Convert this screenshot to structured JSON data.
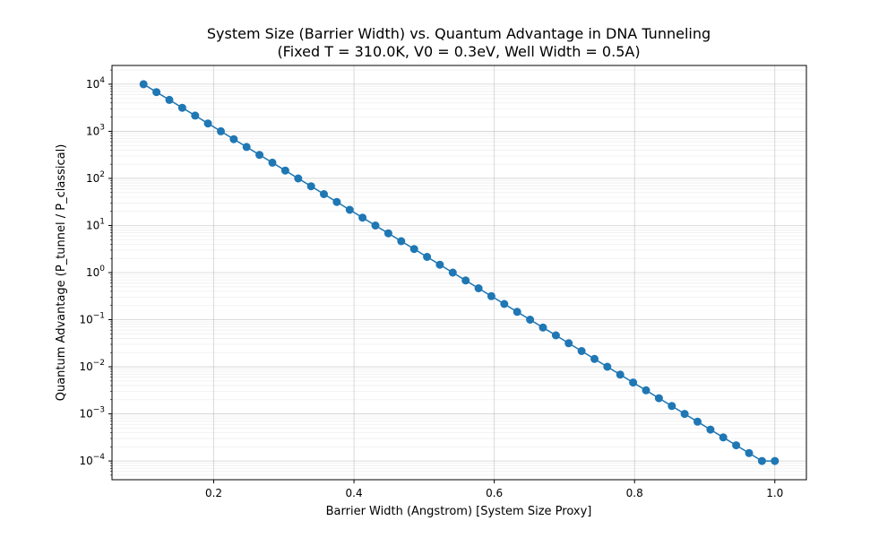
{
  "chart_data": {
    "type": "line",
    "title_line1": "System Size (Barrier Width) vs. Quantum Advantage in DNA Tunneling",
    "title_line2": "(Fixed T = 310.0K, V0 = 0.3eV, Well Width = 0.5A)",
    "xlabel": "Barrier Width (Angstrom) [System Size Proxy]",
    "ylabel": "Quantum Advantage (P_tunnel / P_classical)",
    "x_scale": "linear",
    "y_scale": "log",
    "xlim": [
      0.055,
      1.045
    ],
    "ylim": [
      4e-05,
      25000
    ],
    "x_ticks": [
      "0.2",
      "0.4",
      "0.6",
      "0.8",
      "1.0"
    ],
    "x_tick_values": [
      0.2,
      0.4,
      0.6,
      0.8,
      1.0
    ],
    "y_ticks": [
      {
        "base": "10",
        "exp": "−4"
      },
      {
        "base": "10",
        "exp": "−3"
      },
      {
        "base": "10",
        "exp": "−2"
      },
      {
        "base": "10",
        "exp": "−1"
      },
      {
        "base": "10",
        "exp": "0"
      },
      {
        "base": "10",
        "exp": "1"
      },
      {
        "base": "10",
        "exp": "2"
      },
      {
        "base": "10",
        "exp": "3"
      },
      {
        "base": "10",
        "exp": "4"
      }
    ],
    "y_tick_exponents": [
      -4,
      -3,
      -2,
      -1,
      0,
      1,
      2,
      3,
      4
    ],
    "grid": true,
    "minor_grid": true,
    "series": [
      {
        "color": "#1f77b4",
        "marker": "circle",
        "x": [
          0.1,
          0.1184,
          0.1367,
          0.1551,
          0.1735,
          0.1918,
          0.2102,
          0.2286,
          0.2469,
          0.2653,
          0.2837,
          0.302,
          0.3204,
          0.3388,
          0.3571,
          0.3755,
          0.3939,
          0.4122,
          0.4306,
          0.449,
          0.4673,
          0.4857,
          0.5041,
          0.5224,
          0.5408,
          0.5592,
          0.5776,
          0.5959,
          0.6143,
          0.6327,
          0.651,
          0.6694,
          0.6878,
          0.7061,
          0.7245,
          0.7429,
          0.7612,
          0.7796,
          0.798,
          0.8163,
          0.8347,
          0.8531,
          0.8714,
          0.8898,
          0.9082,
          0.9265,
          0.9449,
          0.9633,
          0.9816,
          1.0
        ],
        "y": [
          10000,
          6813,
          4642,
          3162,
          2154,
          1468,
          1000,
          681.3,
          464.2,
          316.2,
          215.4,
          146.8,
          100,
          68.13,
          46.42,
          31.62,
          21.54,
          14.68,
          10,
          6.813,
          4.642,
          3.162,
          2.154,
          1.468,
          1.0,
          0.6813,
          0.4642,
          0.3162,
          0.2154,
          0.1468,
          0.1,
          0.06813,
          0.04642,
          0.03162,
          0.02154,
          0.01468,
          0.01,
          0.006813,
          0.004642,
          0.003162,
          0.002154,
          0.001468,
          0.001,
          0.0006813,
          0.0004642,
          0.0003162,
          0.0002154,
          0.0001468,
          0.0001,
          0.0001
        ]
      }
    ]
  }
}
